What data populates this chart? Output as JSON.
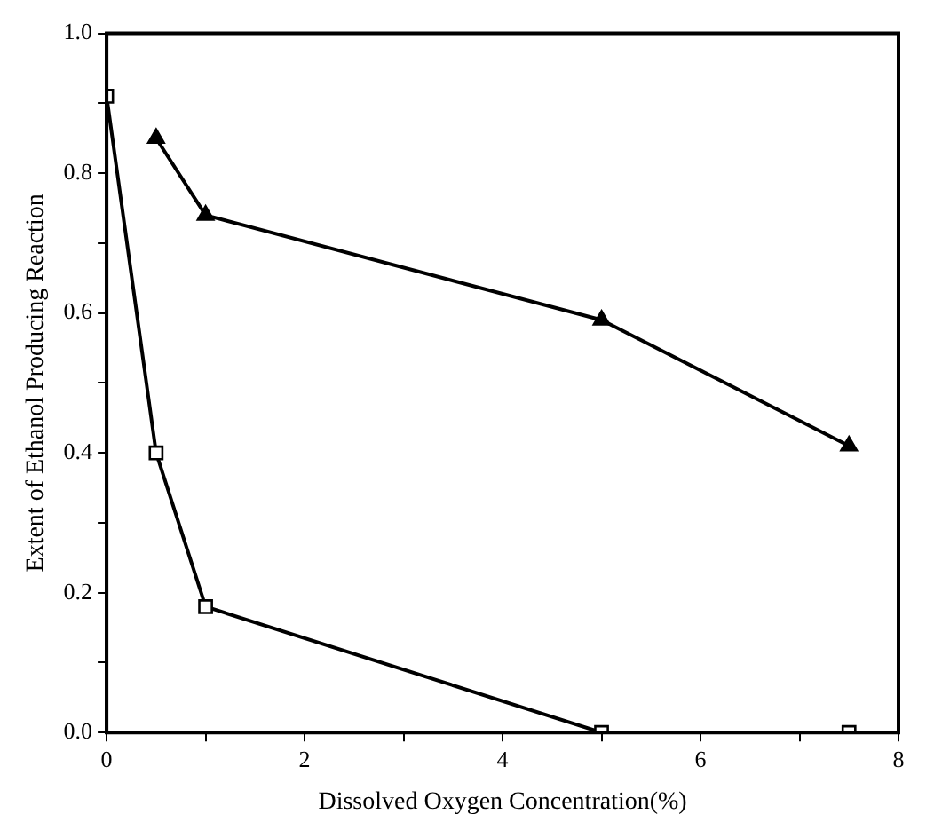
{
  "chart_data": {
    "type": "line",
    "xlabel": "Dissolved Oxygen Concentration(%)",
    "ylabel": "Extent of Ethanol Producing Reaction",
    "series": [
      {
        "color": "#000000",
        "marker": "triangle",
        "x": [
          0.5,
          1,
          5,
          7.5
        ],
        "values": [
          0.85,
          0.74,
          0.59,
          0.41
        ]
      },
      {
        "color": "#000000",
        "marker": "square",
        "x": [
          0,
          0.5,
          1,
          5,
          7.5
        ],
        "values": [
          0.91,
          0.4,
          0.18,
          0,
          0
        ]
      }
    ],
    "xlim": [
      0,
      8
    ],
    "xticks": [
      0,
      {
        "value": 1,
        "label": null
      },
      2,
      {
        "value": 3,
        "label": null
      },
      4,
      {
        "value": 5,
        "label": null
      },
      6,
      {
        "value": 7,
        "label": null
      },
      8
    ],
    "ylim": [
      0,
      1
    ],
    "yticks": [
      {
        "value": 0,
        "label": "0.0"
      },
      {
        "value": 0.1,
        "label": null
      },
      0.2,
      {
        "value": 0.3,
        "label": null
      },
      0.4,
      {
        "value": 0.5,
        "label": null
      },
      0.6,
      {
        "value": 0.7,
        "label": null
      },
      0.8,
      {
        "value": 0.9,
        "label": null
      },
      {
        "value": 1,
        "label": "1.0"
      }
    ],
    "grid": false,
    "legend": false,
    "line_style": "solid"
  }
}
